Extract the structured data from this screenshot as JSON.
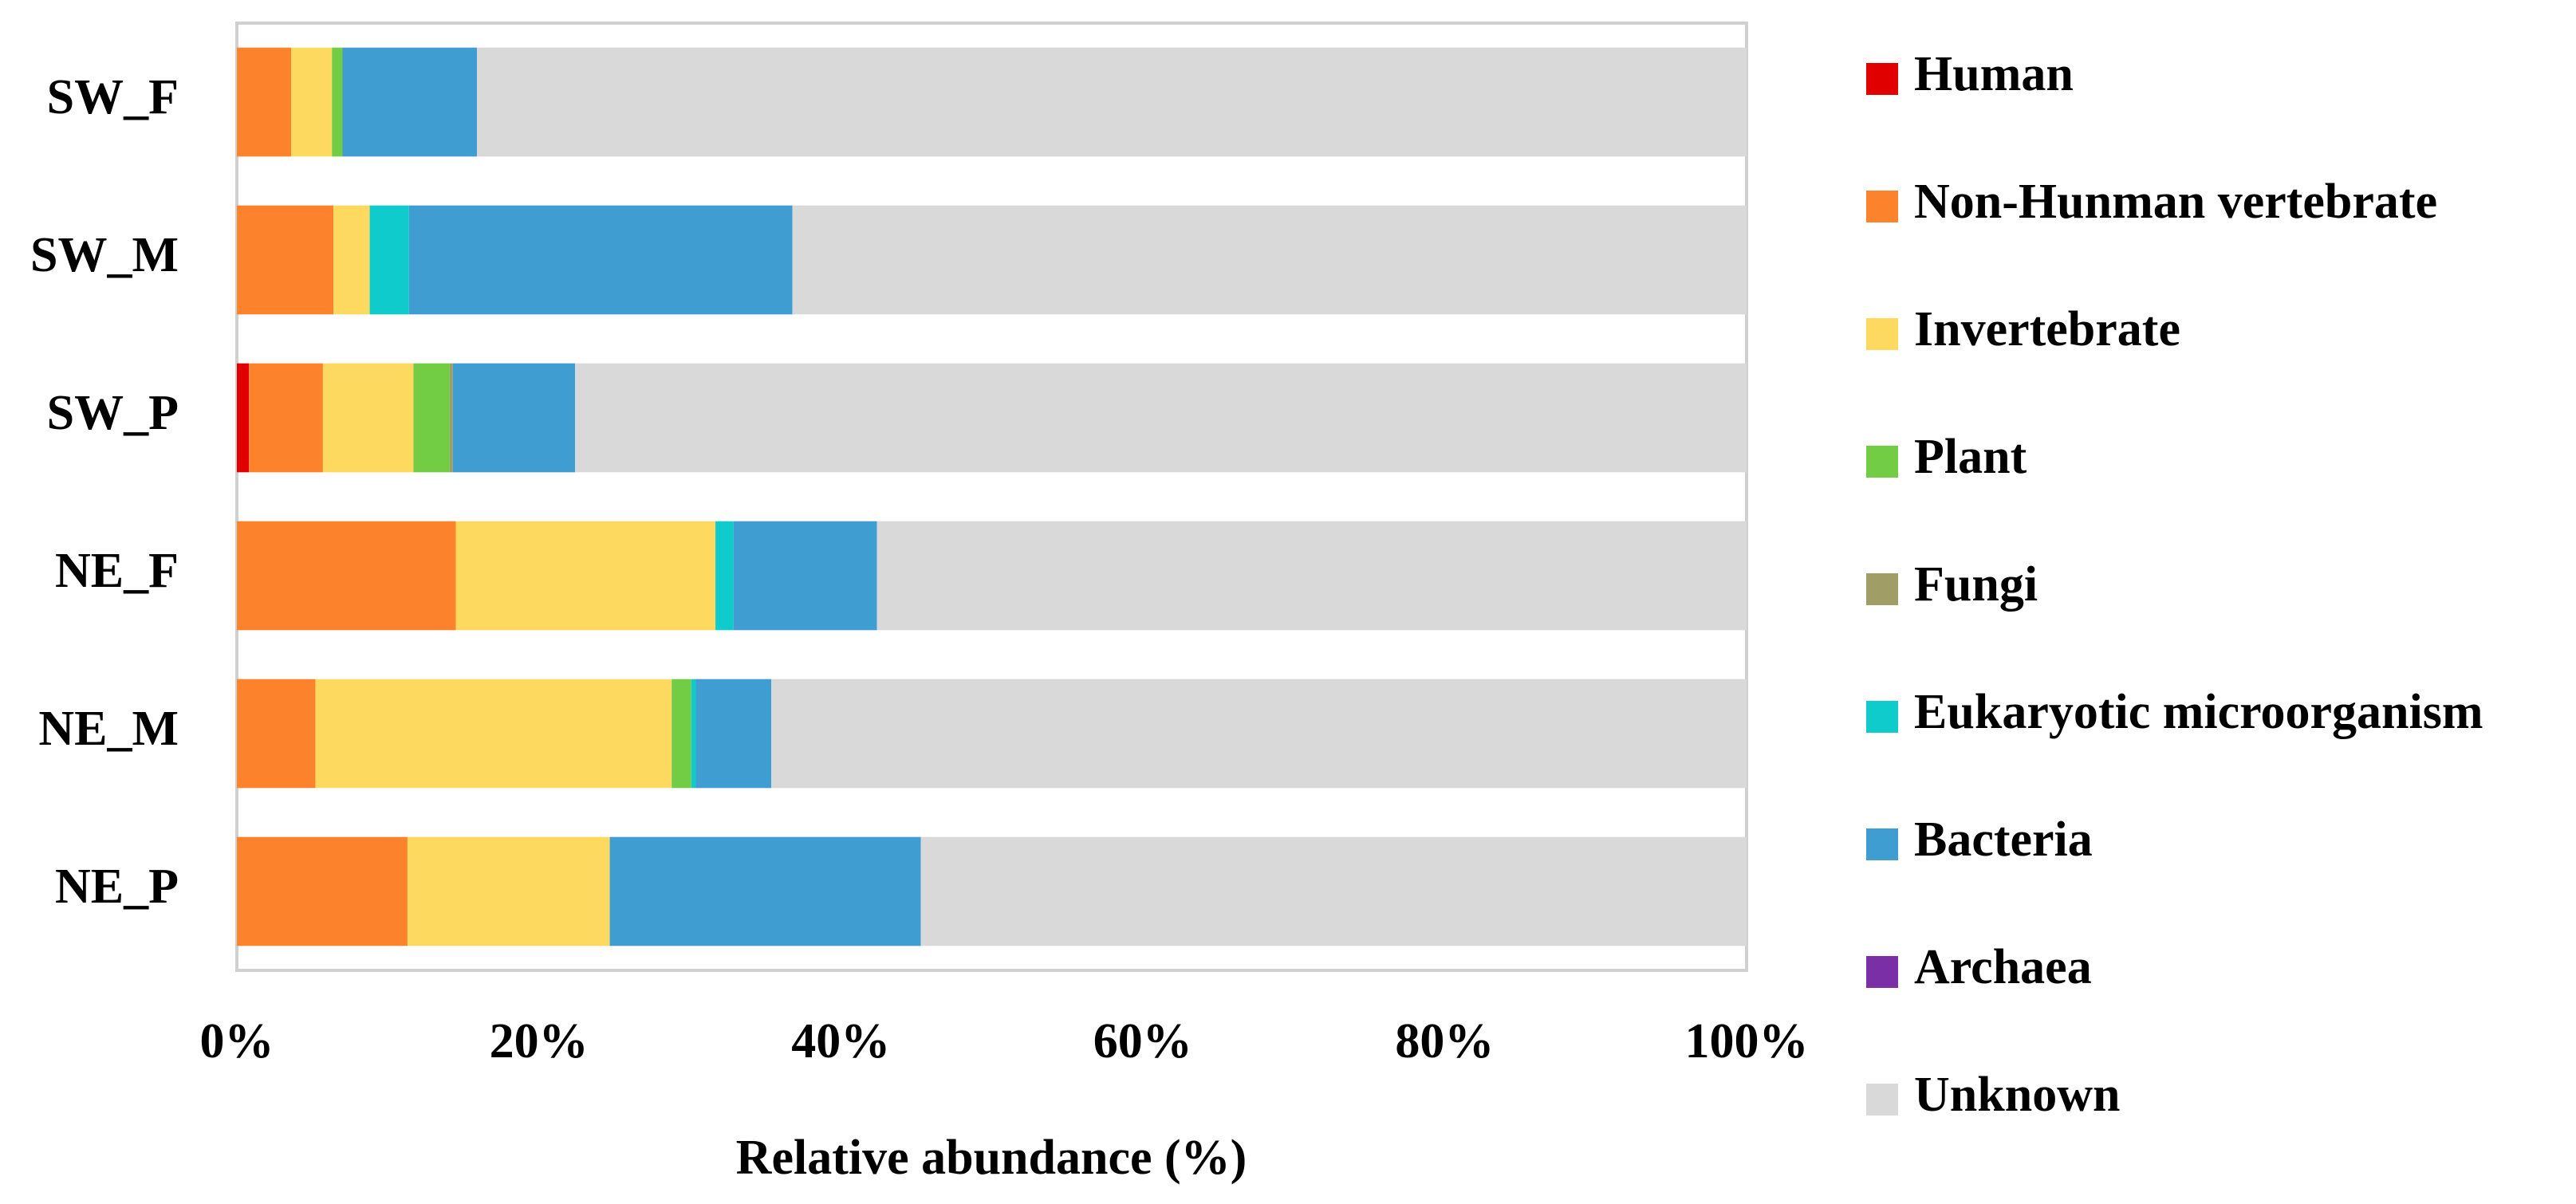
{
  "chart_data": {
    "type": "stacked-bar-horizontal",
    "x_label": "Relative abundance (%)",
    "categories": [
      "SW_F",
      "SW_M",
      "SW_P",
      "NE_F",
      "NE_M",
      "NE_P"
    ],
    "series": [
      {
        "name": "Human",
        "color": "#e00000",
        "values": [
          0,
          0,
          0.8,
          0,
          0,
          0
        ]
      },
      {
        "name": "Non-Hunman vertebrate",
        "color": "#fd822c",
        "values": [
          3.6,
          6.4,
          4.9,
          14.5,
          5.2,
          11.3
        ]
      },
      {
        "name": "Invertebrate",
        "color": "#fed95f",
        "values": [
          2.7,
          2.4,
          6.0,
          17.2,
          23.6,
          13.4
        ]
      },
      {
        "name": "Plant",
        "color": "#72cd44",
        "values": [
          0.7,
          0,
          2.4,
          0,
          1.3,
          0
        ]
      },
      {
        "name": "Fungi",
        "color": "#a19d67",
        "values": [
          0,
          0,
          0.2,
          0,
          0,
          0
        ]
      },
      {
        "name": "Eukaryotic microorganism",
        "color": "#0fcbcb",
        "values": [
          0,
          2.6,
          0,
          1.2,
          0.3,
          0
        ]
      },
      {
        "name": "Bacteria",
        "color": "#409dd1",
        "values": [
          8.9,
          25.4,
          8.1,
          9.5,
          5.0,
          20.6
        ]
      },
      {
        "name": "Archaea",
        "color": "#7b2fa7",
        "values": [
          0,
          0,
          0,
          0,
          0,
          0
        ]
      },
      {
        "name": "Unknown",
        "color": "#d9d9d9",
        "values": [
          84.1,
          63.2,
          77.6,
          57.6,
          64.6,
          54.7
        ]
      }
    ],
    "xlim": [
      0,
      100
    ],
    "xticks": [
      {
        "value": 0,
        "label": "0%"
      },
      {
        "value": 20,
        "label": "20%"
      },
      {
        "value": 40,
        "label": "40%"
      },
      {
        "value": 60,
        "label": "60%"
      },
      {
        "value": 80,
        "label": "80%"
      },
      {
        "value": 100,
        "label": "100%"
      }
    ]
  }
}
